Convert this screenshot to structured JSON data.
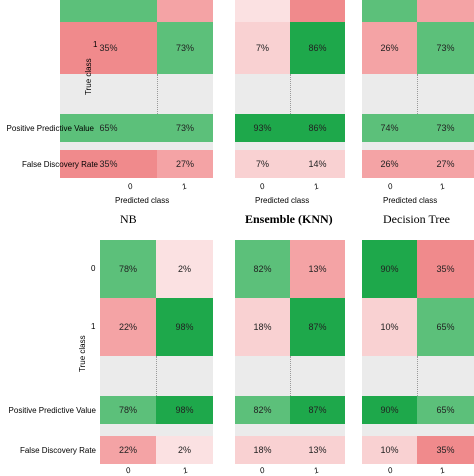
{
  "chart_data": [
    {
      "type": "heatmap",
      "title": "NB",
      "xlabel": "Predicted class",
      "ylabel": "True class",
      "row_labels": [
        "1"
      ],
      "col_labels": [
        "0",
        "1"
      ],
      "confusion_partial": [
        [
          "35%",
          "73%"
        ]
      ],
      "top_row_cropped": true,
      "ppv": [
        "65%",
        "73%"
      ],
      "fdr": [
        "35%",
        "27%"
      ]
    },
    {
      "type": "heatmap",
      "title": "Ensemble (KNN)",
      "xlabel": "Predicted class",
      "row_labels": [
        "1"
      ],
      "col_labels": [
        "0",
        "1"
      ],
      "confusion_partial": [
        [
          "7%",
          "86%"
        ]
      ],
      "top_row_cropped": true,
      "ppv": [
        "93%",
        "86%"
      ],
      "fdr": [
        "7%",
        "14%"
      ]
    },
    {
      "type": "heatmap",
      "title": "Decision Tree",
      "xlabel": "Predicted class",
      "row_labels": [
        "1"
      ],
      "col_labels": [
        "0",
        "1"
      ],
      "confusion_partial": [
        [
          "26%",
          "73%"
        ]
      ],
      "top_row_cropped": true,
      "ppv": [
        "74%",
        "73%"
      ],
      "fdr": [
        "26%",
        "27%"
      ]
    },
    {
      "type": "heatmap",
      "xlabel": "",
      "ylabel": "True class",
      "row_labels": [
        "0",
        "1"
      ],
      "col_labels": [
        "0",
        "1"
      ],
      "confusion": [
        [
          "78%",
          "2%"
        ],
        [
          "22%",
          "98%"
        ]
      ],
      "ppv": [
        "78%",
        "98%"
      ],
      "fdr": [
        "22%",
        "2%"
      ]
    },
    {
      "type": "heatmap",
      "row_labels": [
        "0",
        "1"
      ],
      "col_labels": [
        "0",
        "1"
      ],
      "confusion": [
        [
          "82%",
          "13%"
        ],
        [
          "18%",
          "87%"
        ]
      ],
      "ppv": [
        "82%",
        "87%"
      ],
      "fdr": [
        "18%",
        "13%"
      ]
    },
    {
      "type": "heatmap",
      "row_labels": [
        "0",
        "1"
      ],
      "col_labels": [
        "0",
        "1"
      ],
      "confusion": [
        [
          "90%",
          "35%"
        ],
        [
          "10%",
          "65%"
        ]
      ],
      "ppv": [
        "90%",
        "65%"
      ],
      "fdr": [
        "10%",
        "35%"
      ]
    }
  ],
  "labels": {
    "true_class": "True class",
    "predicted_class": "Predicted class",
    "ppv": "Positive Predictive Value",
    "fdr": "False Discovery Rate",
    "row0": "0",
    "row1": "1",
    "col0": "0",
    "col1": "1"
  },
  "titles": {
    "nb": "NB",
    "ensemble": "Ensemble (KNN)",
    "tree": "Decision Tree"
  },
  "colors": {
    "green_strong": "#1ea84b",
    "green_mid": "#5cc07a",
    "green_light": "#9fd9ad",
    "red_strong": "#f08a8c",
    "red_mid": "#f4a3a5",
    "red_light": "#f9d1d2",
    "red_pale": "#fbe1e2",
    "gap": "#ebebeb"
  }
}
